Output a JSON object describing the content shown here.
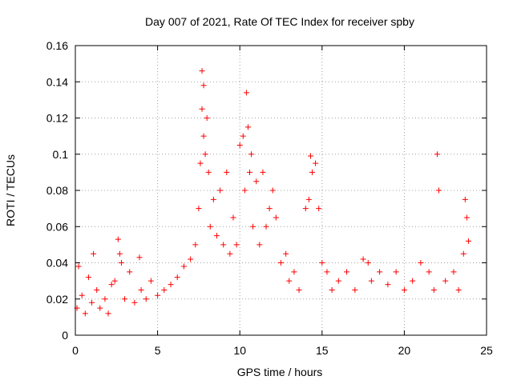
{
  "chart_data": {
    "type": "scatter",
    "title": "Day 007 of 2021, Rate Of TEC Index for receiver spby",
    "xlabel": "GPS time / hours",
    "ylabel": "ROTI / TECUs",
    "xlim": [
      0,
      25
    ],
    "ylim": [
      0,
      0.16
    ],
    "x_ticks": [
      0,
      5,
      10,
      15,
      20,
      25
    ],
    "x_tick_labels": [
      "0",
      "5",
      "10",
      "15",
      "20",
      "25"
    ],
    "y_ticks": [
      0,
      0.02,
      0.04,
      0.06,
      0.08,
      0.1,
      0.12,
      0.14,
      0.16
    ],
    "y_tick_labels": [
      "0",
      "0.02",
      "0.04",
      "0.06",
      "0.08",
      "0.1",
      "0.12",
      "0.14",
      "0.16"
    ],
    "grid": true,
    "marker": "plus",
    "color": "#ff0000",
    "series": [
      {
        "x": [
          0.1,
          0.2,
          0.4,
          0.6,
          0.8,
          1.0,
          1.1,
          1.3,
          1.5,
          1.8,
          2.0,
          2.2,
          2.4,
          2.6,
          2.7,
          2.8,
          3.0,
          3.3,
          3.6,
          3.9,
          4.0,
          4.3,
          4.6,
          5.0,
          5.4,
          5.8,
          6.2,
          6.6,
          7.0,
          7.3,
          7.5,
          7.6,
          7.7,
          7.7,
          7.8,
          7.8,
          7.9,
          8.0,
          8.1,
          8.2,
          8.4,
          8.6,
          8.8,
          9.0,
          9.2,
          9.4,
          9.6,
          9.8,
          10.0,
          10.2,
          10.3,
          10.4,
          10.5,
          10.6,
          10.7,
          10.8,
          11.0,
          11.2,
          11.4,
          11.6,
          11.8,
          12.0,
          12.2,
          12.5,
          12.8,
          13.0,
          13.3,
          13.6,
          14.0,
          14.2,
          14.3,
          14.4,
          14.6,
          14.8,
          15.0,
          15.3,
          15.6,
          16.0,
          16.5,
          17.0,
          17.5,
          17.8,
          18.0,
          18.5,
          19.0,
          19.5,
          20.0,
          20.5,
          21.0,
          21.5,
          21.8,
          22.0,
          22.1,
          22.5,
          23.0,
          23.3,
          23.6,
          23.7,
          23.8,
          23.9
        ],
        "y": [
          0.015,
          0.038,
          0.022,
          0.012,
          0.032,
          0.018,
          0.045,
          0.025,
          0.015,
          0.02,
          0.012,
          0.028,
          0.03,
          0.053,
          0.045,
          0.04,
          0.02,
          0.035,
          0.018,
          0.043,
          0.025,
          0.02,
          0.03,
          0.022,
          0.025,
          0.028,
          0.032,
          0.038,
          0.042,
          0.05,
          0.07,
          0.095,
          0.125,
          0.146,
          0.138,
          0.11,
          0.1,
          0.12,
          0.09,
          0.06,
          0.075,
          0.055,
          0.08,
          0.05,
          0.09,
          0.045,
          0.065,
          0.05,
          0.105,
          0.11,
          0.08,
          0.134,
          0.115,
          0.09,
          0.1,
          0.06,
          0.085,
          0.05,
          0.09,
          0.06,
          0.07,
          0.08,
          0.065,
          0.04,
          0.045,
          0.03,
          0.035,
          0.025,
          0.07,
          0.075,
          0.099,
          0.09,
          0.095,
          0.07,
          0.04,
          0.035,
          0.025,
          0.03,
          0.035,
          0.025,
          0.042,
          0.04,
          0.03,
          0.035,
          0.028,
          0.035,
          0.025,
          0.03,
          0.04,
          0.035,
          0.025,
          0.1,
          0.08,
          0.03,
          0.035,
          0.025,
          0.045,
          0.075,
          0.065,
          0.052
        ]
      }
    ]
  }
}
